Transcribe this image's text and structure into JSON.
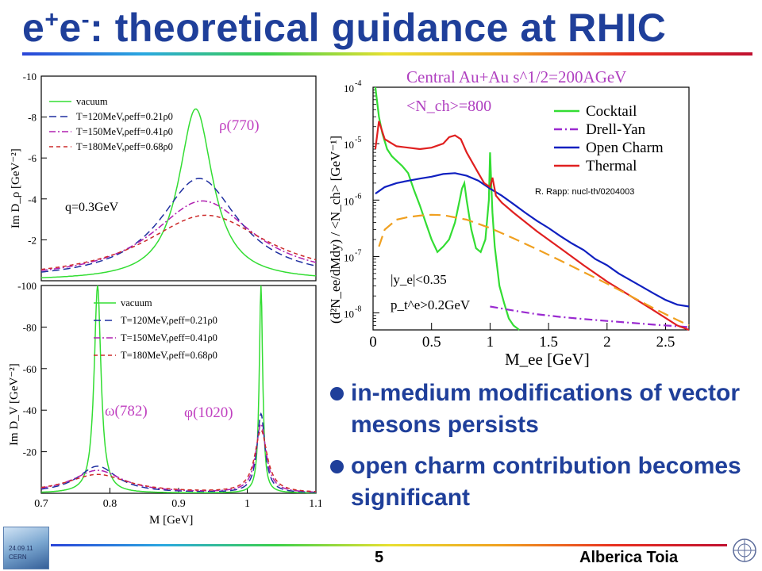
{
  "slide": {
    "title_main": "e",
    "title_sup1": "+",
    "title_mid": "e",
    "title_sup2": "-",
    "title_rest": ": theoretical guidance at RHIC",
    "bullets": [
      "in-medium modifications of vector mesons persists",
      "open charm contribution becomes significant"
    ],
    "page_number": "5",
    "author": "Alberica Toia",
    "logo_left_lines": [
      "24.09.11",
      "CERN"
    ]
  },
  "chart_data": [
    {
      "type": "line",
      "ylabel": "Im D_ρ [GeV⁻²]",
      "x_range": [
        0.7,
        1.1
      ],
      "ylim": [
        -10,
        0
      ],
      "y_ticks": [
        "-10",
        "-8",
        "-6",
        "-4",
        "-2"
      ],
      "annotations": [
        "ρ(770)",
        "q=0.3GeV"
      ],
      "series": [
        {
          "name": "vacuum",
          "color": "#33dd33",
          "dash": "solid",
          "peak_x": 0.925,
          "peak_y": -8.4,
          "width": 0.03
        },
        {
          "name": "T=120MeV,ρeff=0.21ρ0",
          "color": "#1f2fa0",
          "dash": "long",
          "peak_x": 0.93,
          "peak_y": -5.0,
          "width": 0.07
        },
        {
          "name": "T=150MeV,ρeff=0.41ρ0",
          "color": "#b020b0",
          "dash": "dashdot",
          "peak_x": 0.935,
          "peak_y": -3.9,
          "width": 0.09
        },
        {
          "name": "T=180MeV,ρeff=0.68ρ0",
          "color": "#cc2a2a",
          "dash": "short",
          "peak_x": 0.94,
          "peak_y": -3.2,
          "width": 0.11
        }
      ]
    },
    {
      "type": "line",
      "xlabel": "M [GeV]",
      "ylabel": "Im D_V [GeV⁻²]",
      "x_range": [
        0.7,
        1.1
      ],
      "ylim": [
        -100,
        0
      ],
      "x_ticks": [
        "0.7",
        "0.8",
        "0.9",
        "1",
        "1.1"
      ],
      "y_ticks": [
        "-100",
        "-80",
        "-60",
        "-40",
        "-20"
      ],
      "annotations": [
        "ω(782)",
        "φ(1020)"
      ],
      "series": [
        {
          "name": "vacuum",
          "color": "#33dd33",
          "dash": "solid",
          "peaks": [
            [
              0.782,
              -100,
              0.006
            ],
            [
              1.02,
              -100,
              0.003
            ]
          ]
        },
        {
          "name": "T=120MeV,ρeff=0.21ρ0",
          "color": "#1f2fa0",
          "dash": "long",
          "peaks": [
            [
              0.782,
              -13,
              0.035
            ],
            [
              1.02,
              -38,
              0.007
            ]
          ]
        },
        {
          "name": "T=150MeV,ρeff=0.41ρ0",
          "color": "#b020b0",
          "dash": "dashdot",
          "peaks": [
            [
              0.782,
              -11,
              0.045
            ],
            [
              1.02,
              -33,
              0.009
            ]
          ]
        },
        {
          "name": "T=180MeV,ρeff=0.68ρ0",
          "color": "#cc2a2a",
          "dash": "short",
          "peaks": [
            [
              0.782,
              -9,
              0.055
            ],
            [
              1.02,
              -30,
              0.011
            ]
          ]
        }
      ]
    },
    {
      "type": "line",
      "title": "Central Au+Au   s^1/2=200AGeV",
      "xlabel": "M_ee [GeV]",
      "ylabel": "(d²N_ee/dMdy) / <N_ch>  [GeV⁻¹]",
      "log_y": true,
      "x_range": [
        0,
        2.7
      ],
      "ylim": [
        5e-09,
        0.0001
      ],
      "x_ticks": [
        "0",
        "0.5",
        "1",
        "1.5",
        "2",
        "2.5"
      ],
      "y_ticks": [
        "10",
        "10",
        "10",
        "10",
        "10"
      ],
      "y_tick_exps": [
        "-4",
        "-5",
        "-6",
        "-7",
        "-8"
      ],
      "annotations": [
        "<N_ch>=800",
        "|y_e|<0.35",
        "p_t^e>0.2GeV",
        "R. Rapp: nucl-th/0204003"
      ],
      "series": [
        {
          "name": "Cocktail",
          "color": "#33dd33",
          "x": [
            0.02,
            0.05,
            0.08,
            0.12,
            0.16,
            0.2,
            0.25,
            0.3,
            0.35,
            0.4,
            0.45,
            0.5,
            0.55,
            0.6,
            0.65,
            0.7,
            0.74,
            0.76,
            0.78,
            0.8,
            0.84,
            0.88,
            0.92,
            0.96,
            0.99,
            1.0,
            1.01,
            1.02,
            1.04,
            1.08,
            1.12,
            1.16,
            1.2,
            1.25
          ],
          "y": [
            0.0001,
            3e-05,
            1.5e-05,
            8e-06,
            6e-06,
            5e-06,
            4e-06,
            3e-06,
            1.5e-06,
            8e-07,
            4e-07,
            2e-07,
            1.2e-07,
            1.5e-07,
            2e-07,
            4e-07,
            1e-06,
            1.6e-06,
            2e-06,
            1e-06,
            3e-07,
            1.4e-07,
            1.2e-07,
            2e-07,
            1e-06,
            7e-06,
            2e-06,
            6e-07,
            1.5e-07,
            3e-08,
            1.5e-08,
            8e-09,
            6e-09,
            5e-09
          ]
        },
        {
          "name": "Drell-Yan",
          "color": "#9a2ad0",
          "x": [
            1.0,
            1.2,
            1.4,
            1.6,
            1.8,
            2.0,
            2.2,
            2.4,
            2.6,
            2.7
          ],
          "y": [
            1.3e-08,
            1.1e-08,
            9.5e-09,
            8.5e-09,
            7.8e-09,
            7.2e-09,
            6.7e-09,
            6.2e-09,
            5.8e-09,
            5.6e-09
          ]
        },
        {
          "name": "Open Charm",
          "color": "#1020c0",
          "x": [
            0.02,
            0.1,
            0.2,
            0.3,
            0.4,
            0.5,
            0.6,
            0.7,
            0.8,
            0.9,
            1.0,
            1.1,
            1.2,
            1.3,
            1.4,
            1.5,
            1.6,
            1.7,
            1.8,
            1.9,
            2.0,
            2.1,
            2.2,
            2.3,
            2.4,
            2.5,
            2.6,
            2.7
          ],
          "y": [
            1.3e-06,
            1.7e-06,
            2e-06,
            2.2e-06,
            2.4e-06,
            2.6e-06,
            2.9e-06,
            3e-06,
            2.7e-06,
            2.2e-06,
            1.6e-06,
            1.2e-06,
            8.5e-07,
            6e-07,
            4.3e-07,
            3.2e-07,
            2.3e-07,
            1.7e-07,
            1.3e-07,
            9e-08,
            7e-08,
            5e-08,
            3.8e-08,
            2.9e-08,
            2.2e-08,
            1.7e-08,
            1.4e-08,
            1.3e-08
          ]
        },
        {
          "name": "Thermal",
          "color": "#e02020",
          "x": [
            0.02,
            0.05,
            0.1,
            0.2,
            0.3,
            0.4,
            0.5,
            0.6,
            0.65,
            0.7,
            0.75,
            0.8,
            0.9,
            0.95,
            1.0,
            1.02,
            1.05,
            1.1,
            1.2,
            1.4,
            1.6,
            1.8,
            2.0,
            2.2,
            2.4,
            2.6,
            2.7
          ],
          "y": [
            8e-06,
            2.5e-05,
            1.2e-05,
            9e-06,
            8.5e-06,
            8e-06,
            8.5e-06,
            1e-05,
            1.3e-05,
            1.4e-05,
            1.2e-05,
            7e-06,
            3e-06,
            2e-06,
            1.7e-06,
            2.5e-06,
            1.2e-06,
            9e-07,
            6e-07,
            2.8e-07,
            1.4e-07,
            7e-08,
            3.6e-08,
            2e-08,
            1.1e-08,
            6e-09,
            4.5e-09
          ]
        },
        {
          "name": "",
          "color": "#f0a020",
          "x": [
            0.05,
            0.1,
            0.2,
            0.3,
            0.4,
            0.5,
            0.6,
            0.8,
            1.0,
            1.2,
            1.4,
            1.6,
            1.8,
            2.0,
            2.2,
            2.4,
            2.6,
            2.7
          ],
          "y": [
            1.5e-07,
            3e-07,
            4.5e-07,
            5e-07,
            5.3e-07,
            5.5e-07,
            5.4e-07,
            4.5e-07,
            3.2e-07,
            2.1e-07,
            1.35e-07,
            8.5e-08,
            5.3e-08,
            3.3e-08,
            2e-08,
            1.2e-08,
            7.5e-09,
            6e-09
          ]
        }
      ]
    }
  ]
}
